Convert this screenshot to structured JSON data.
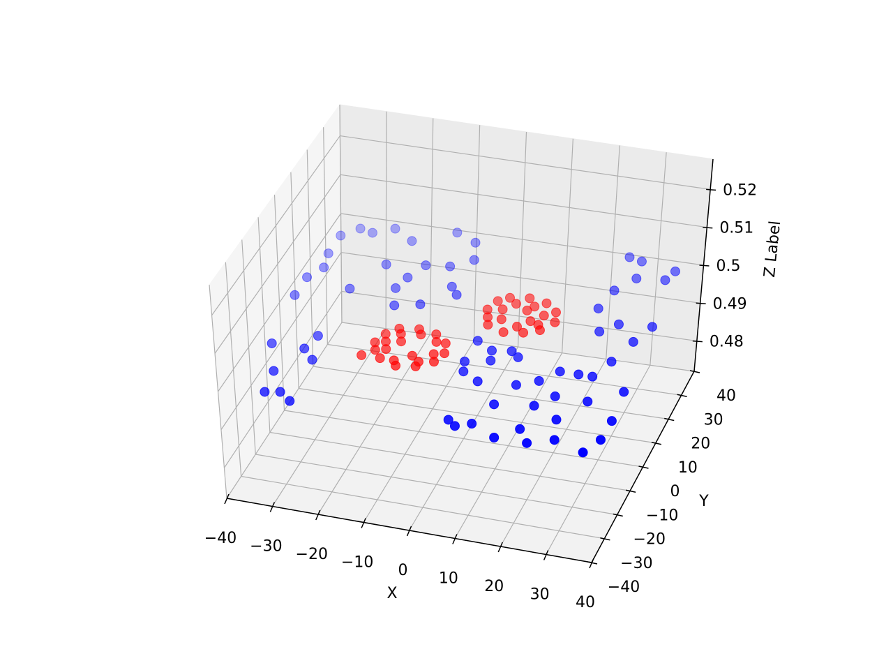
{
  "chart_data": {
    "type": "scatter3d",
    "xlabel": "X",
    "ylabel": "Y",
    "zlabel": "Z Label",
    "xlim": [
      -40,
      40
    ],
    "ylim": [
      -40,
      40
    ],
    "zlim": [
      0.472,
      0.528
    ],
    "xticks": [
      {
        "value": -40,
        "label": "−40"
      },
      {
        "value": -30,
        "label": "−30"
      },
      {
        "value": -20,
        "label": "−20"
      },
      {
        "value": -10,
        "label": "−10"
      },
      0,
      10,
      20,
      30,
      40
    ],
    "yticks": [
      {
        "value": -40,
        "label": "−40"
      },
      {
        "value": -30,
        "label": "−30"
      },
      {
        "value": -20,
        "label": "−20"
      },
      {
        "value": -10,
        "label": "−10"
      },
      0,
      10,
      20,
      30,
      40
    ],
    "zticks": [
      0.48,
      0.49,
      0.5,
      0.51,
      0.52
    ],
    "grid": true,
    "depthshade": true,
    "series": [
      {
        "color": "#0000ff",
        "x": [
          -31,
          -28,
          -25,
          -32,
          -36,
          -29,
          -26,
          -28,
          -38,
          -38,
          -36,
          -37,
          -34,
          -27,
          -24,
          -18,
          -16,
          -11,
          -7,
          -14,
          -12,
          -17,
          -6,
          -28,
          -37,
          8,
          10,
          13,
          19,
          23,
          26,
          23,
          15,
          5,
          9,
          17,
          29,
          31,
          38,
          40,
          40,
          33,
          26,
          28,
          21,
          24,
          31,
          39,
          33,
          35,
          27,
          24,
          30,
          37,
          25,
          24,
          27,
          34,
          35,
          28,
          4,
          8,
          12,
          14,
          4,
          9,
          -8,
          -31,
          -22,
          -9,
          -19
        ],
        "y": [
          -37,
          -36,
          -39,
          -28,
          -17,
          -17,
          -21,
          -11,
          4,
          12,
          17,
          31,
          35,
          37,
          22,
          18,
          24,
          25,
          29,
          39,
          8,
          6,
          14,
          10,
          23,
          -36,
          -38,
          -36,
          -40,
          -35,
          -40,
          -25,
          -27,
          -16,
          -19,
          -18,
          -29,
          -37,
          -40,
          -34,
          -26,
          -20,
          -20,
          -10,
          -15,
          -10,
          -10,
          -14,
          -3,
          6,
          8,
          17,
          12,
          13,
          25,
          39,
          38,
          32,
          36,
          31,
          -3,
          -6,
          -5,
          -7,
          -12,
          -10,
          17,
          34,
          33,
          36,
          13
        ],
        "z": [
          0.5,
          0.5,
          0.5,
          0.5,
          0.5,
          0.5,
          0.5,
          0.5,
          0.5,
          0.5,
          0.5,
          0.5,
          0.5,
          0.5,
          0.5,
          0.5,
          0.5,
          0.5,
          0.5,
          0.5,
          0.5,
          0.5,
          0.5,
          0.5,
          0.5,
          0.5,
          0.5,
          0.5,
          0.5,
          0.5,
          0.5,
          0.5,
          0.5,
          0.5,
          0.5,
          0.5,
          0.5,
          0.5,
          0.5,
          0.5,
          0.5,
          0.5,
          0.5,
          0.5,
          0.5,
          0.5,
          0.5,
          0.5,
          0.5,
          0.5,
          0.5,
          0.5,
          0.5,
          0.5,
          0.5,
          0.5,
          0.5,
          0.5,
          0.5,
          0.5,
          0.5,
          0.5,
          0.5,
          0.5,
          0.5,
          0.5,
          0.5,
          0.5,
          0.5,
          0.5,
          0.5
        ]
      },
      {
        "color": "#ff0000",
        "x": [
          -16,
          -15,
          -13,
          -9,
          -5,
          -2,
          -1,
          -2,
          -5,
          -9,
          -13,
          -15,
          -14,
          -12,
          -8,
          -4,
          -3,
          -5,
          -10,
          -13,
          -11,
          -7,
          -17,
          2,
          3,
          5,
          9,
          13,
          16,
          17,
          15,
          12,
          8,
          4,
          3,
          5,
          7,
          11,
          14,
          14,
          10,
          6,
          10,
          12
        ],
        "y": [
          -10,
          -6,
          -3,
          -2,
          -3,
          -6,
          -10,
          -14,
          -17,
          -18,
          -16,
          -13,
          -9,
          -5,
          -4,
          -6,
          -11,
          -15,
          -16,
          -12,
          -8,
          -13,
          -16,
          10,
          14,
          16,
          17,
          16,
          13,
          9,
          5,
          3,
          2,
          4,
          7,
          11,
          14,
          14,
          11,
          7,
          5,
          7,
          12,
          8
        ],
        "z": [
          0.5,
          0.5,
          0.5,
          0.5,
          0.5,
          0.5,
          0.5,
          0.5,
          0.5,
          0.5,
          0.5,
          0.5,
          0.5,
          0.5,
          0.5,
          0.5,
          0.5,
          0.5,
          0.5,
          0.5,
          0.5,
          0.5,
          0.5,
          0.5,
          0.5,
          0.5,
          0.5,
          0.5,
          0.5,
          0.5,
          0.5,
          0.5,
          0.5,
          0.5,
          0.5,
          0.5,
          0.5,
          0.5,
          0.5,
          0.5,
          0.5,
          0.5,
          0.5,
          0.5
        ]
      }
    ]
  }
}
